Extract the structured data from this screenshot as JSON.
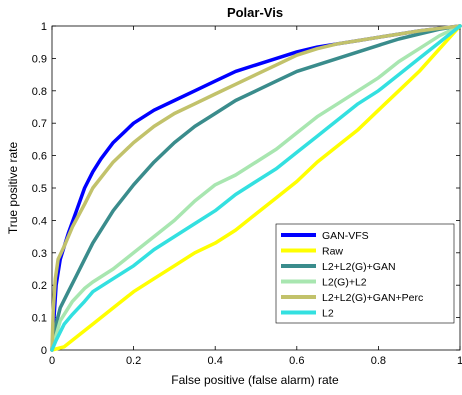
{
  "chart_data": {
    "type": "line",
    "title": "Polar-Vis",
    "xlabel": "False positive (false alarm) rate",
    "ylabel": "True positive  rate",
    "xlim": [
      0,
      1
    ],
    "ylim": [
      0,
      1
    ],
    "xticks": [
      "0",
      "0.2",
      "0.4",
      "0.6",
      "0.8",
      "1"
    ],
    "yticks": [
      "0",
      "0.1",
      "0.2",
      "0.3",
      "0.4",
      "0.5",
      "0.6",
      "0.7",
      "0.8",
      "0.9",
      "1"
    ],
    "grid": false,
    "legend_position": "bottom-right",
    "series": [
      {
        "name": "GAN-VFS",
        "color": "#0000ff",
        "points": [
          [
            0,
            0
          ],
          [
            0.005,
            0.1
          ],
          [
            0.01,
            0.2
          ],
          [
            0.02,
            0.28
          ],
          [
            0.04,
            0.36
          ],
          [
            0.06,
            0.43
          ],
          [
            0.08,
            0.5
          ],
          [
            0.1,
            0.55
          ],
          [
            0.12,
            0.59
          ],
          [
            0.15,
            0.64
          ],
          [
            0.2,
            0.7
          ],
          [
            0.25,
            0.74
          ],
          [
            0.3,
            0.77
          ],
          [
            0.35,
            0.8
          ],
          [
            0.4,
            0.83
          ],
          [
            0.45,
            0.86
          ],
          [
            0.5,
            0.88
          ],
          [
            0.55,
            0.9
          ],
          [
            0.6,
            0.92
          ],
          [
            0.65,
            0.935
          ],
          [
            0.7,
            0.945
          ],
          [
            0.75,
            0.955
          ],
          [
            0.8,
            0.965
          ],
          [
            0.85,
            0.975
          ],
          [
            0.9,
            0.985
          ],
          [
            0.95,
            0.993
          ],
          [
            1,
            1
          ]
        ]
      },
      {
        "name": "Raw",
        "color": "#ffff00",
        "points": [
          [
            0,
            0
          ],
          [
            0.03,
            0.01
          ],
          [
            0.06,
            0.04
          ],
          [
            0.1,
            0.08
          ],
          [
            0.15,
            0.13
          ],
          [
            0.2,
            0.18
          ],
          [
            0.25,
            0.22
          ],
          [
            0.3,
            0.26
          ],
          [
            0.35,
            0.3
          ],
          [
            0.4,
            0.33
          ],
          [
            0.45,
            0.37
          ],
          [
            0.5,
            0.42
          ],
          [
            0.55,
            0.47
          ],
          [
            0.6,
            0.52
          ],
          [
            0.65,
            0.58
          ],
          [
            0.7,
            0.63
          ],
          [
            0.75,
            0.68
          ],
          [
            0.8,
            0.74
          ],
          [
            0.85,
            0.8
          ],
          [
            0.9,
            0.86
          ],
          [
            0.95,
            0.93
          ],
          [
            1,
            1
          ]
        ]
      },
      {
        "name": "L2+L2(G)+GAN",
        "color": "#3a8c8c",
        "points": [
          [
            0,
            0
          ],
          [
            0.01,
            0.08
          ],
          [
            0.02,
            0.13
          ],
          [
            0.04,
            0.18
          ],
          [
            0.06,
            0.23
          ],
          [
            0.08,
            0.28
          ],
          [
            0.1,
            0.33
          ],
          [
            0.12,
            0.37
          ],
          [
            0.15,
            0.43
          ],
          [
            0.2,
            0.51
          ],
          [
            0.25,
            0.58
          ],
          [
            0.3,
            0.64
          ],
          [
            0.35,
            0.69
          ],
          [
            0.4,
            0.73
          ],
          [
            0.45,
            0.77
          ],
          [
            0.5,
            0.8
          ],
          [
            0.55,
            0.83
          ],
          [
            0.6,
            0.86
          ],
          [
            0.65,
            0.88
          ],
          [
            0.7,
            0.9
          ],
          [
            0.75,
            0.92
          ],
          [
            0.8,
            0.94
          ],
          [
            0.85,
            0.96
          ],
          [
            0.9,
            0.975
          ],
          [
            0.95,
            0.99
          ],
          [
            1,
            1
          ]
        ]
      },
      {
        "name": "L2(G)+L2",
        "color": "#a8e6b0",
        "points": [
          [
            0,
            0
          ],
          [
            0.02,
            0.09
          ],
          [
            0.05,
            0.15
          ],
          [
            0.08,
            0.19
          ],
          [
            0.1,
            0.21
          ],
          [
            0.15,
            0.25
          ],
          [
            0.2,
            0.3
          ],
          [
            0.25,
            0.35
          ],
          [
            0.3,
            0.4
          ],
          [
            0.35,
            0.46
          ],
          [
            0.4,
            0.51
          ],
          [
            0.45,
            0.54
          ],
          [
            0.5,
            0.58
          ],
          [
            0.55,
            0.62
          ],
          [
            0.6,
            0.67
          ],
          [
            0.65,
            0.72
          ],
          [
            0.7,
            0.76
          ],
          [
            0.75,
            0.8
          ],
          [
            0.8,
            0.84
          ],
          [
            0.85,
            0.89
          ],
          [
            0.9,
            0.93
          ],
          [
            0.95,
            0.97
          ],
          [
            1,
            1
          ]
        ]
      },
      {
        "name": "L2+L2(G)+GAN+Perc",
        "color": "#c2c26b",
        "points": [
          [
            0,
            0
          ],
          [
            0.003,
            0.12
          ],
          [
            0.008,
            0.22
          ],
          [
            0.015,
            0.28
          ],
          [
            0.03,
            0.32
          ],
          [
            0.05,
            0.38
          ],
          [
            0.08,
            0.45
          ],
          [
            0.1,
            0.5
          ],
          [
            0.15,
            0.58
          ],
          [
            0.2,
            0.64
          ],
          [
            0.25,
            0.69
          ],
          [
            0.3,
            0.73
          ],
          [
            0.35,
            0.76
          ],
          [
            0.4,
            0.79
          ],
          [
            0.45,
            0.82
          ],
          [
            0.5,
            0.85
          ],
          [
            0.55,
            0.88
          ],
          [
            0.6,
            0.91
          ],
          [
            0.65,
            0.93
          ],
          [
            0.7,
            0.945
          ],
          [
            0.75,
            0.955
          ],
          [
            0.8,
            0.965
          ],
          [
            0.85,
            0.975
          ],
          [
            0.9,
            0.985
          ],
          [
            0.95,
            0.993
          ],
          [
            1,
            1
          ]
        ]
      },
      {
        "name": "L2",
        "color": "#33e0e0",
        "points": [
          [
            0,
            0
          ],
          [
            0.01,
            0.03
          ],
          [
            0.03,
            0.08
          ],
          [
            0.05,
            0.11
          ],
          [
            0.08,
            0.15
          ],
          [
            0.1,
            0.18
          ],
          [
            0.15,
            0.22
          ],
          [
            0.2,
            0.26
          ],
          [
            0.25,
            0.31
          ],
          [
            0.3,
            0.35
          ],
          [
            0.35,
            0.39
          ],
          [
            0.4,
            0.43
          ],
          [
            0.45,
            0.48
          ],
          [
            0.5,
            0.52
          ],
          [
            0.55,
            0.56
          ],
          [
            0.6,
            0.61
          ],
          [
            0.65,
            0.66
          ],
          [
            0.7,
            0.71
          ],
          [
            0.75,
            0.76
          ],
          [
            0.8,
            0.8
          ],
          [
            0.85,
            0.85
          ],
          [
            0.9,
            0.9
          ],
          [
            0.95,
            0.95
          ],
          [
            1,
            1
          ]
        ]
      }
    ]
  }
}
